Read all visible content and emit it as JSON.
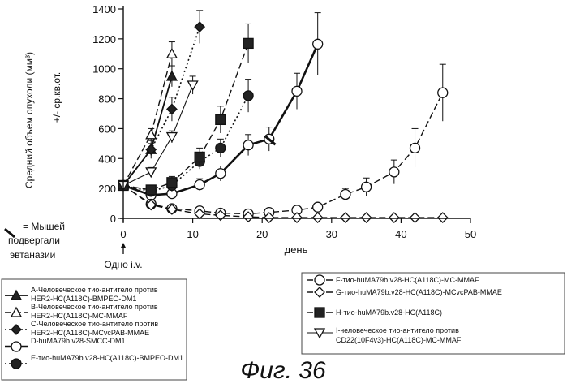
{
  "chart_data": {
    "type": "line",
    "ylabel_main": "Средний объем опухоли (мм³)",
    "ylabel_sub": "+/- ср.кв.от.",
    "xlabel": "день",
    "xlim": [
      0,
      50
    ],
    "ylim": [
      0,
      1400
    ],
    "xticks": [
      0,
      10,
      20,
      30,
      40,
      50
    ],
    "yticks": [
      0,
      200,
      400,
      600,
      800,
      1000,
      1200,
      1400
    ],
    "dosing_label": "Одно i.v.",
    "euthanasia_note": [
      "= Мышей",
      "подвергали",
      "эвтаназии"
    ],
    "euthanasia_marker": {
      "x": 21.2,
      "y": 520
    },
    "figure_label": "Фиг. 36",
    "series": [
      {
        "id": "A",
        "name": "A-Человеческое тио-антитело против HER2-HC(A118C)-BMPEO-DM1",
        "style": "solid",
        "marker": "triangle-filled",
        "points": [
          [
            0,
            220
          ],
          [
            4,
            460
          ],
          [
            7,
            950
          ]
        ],
        "err": [
          20,
          40,
          70
        ]
      },
      {
        "id": "B",
        "name": "B-Человеческое тио-антитело против HER2-HC(A118C)-MC-MMAF",
        "style": "dash",
        "marker": "triangle-open",
        "points": [
          [
            0,
            220
          ],
          [
            4,
            560
          ],
          [
            7,
            1100
          ]
        ],
        "err": [
          20,
          40,
          80
        ]
      },
      {
        "id": "C",
        "name": "C-Человеческое тио-антитело против HER2-HC(A118C)-MCvcPAB-MMAE",
        "style": "dot",
        "marker": "diamond-filled",
        "points": [
          [
            0,
            220
          ],
          [
            4,
            460
          ],
          [
            7,
            730
          ],
          [
            11,
            1280
          ]
        ],
        "err": [
          20,
          60,
          80,
          110
        ]
      },
      {
        "id": "D",
        "name": "D-huMA79b.v28-SMCC-DM1",
        "style": "thick",
        "marker": "circle-open",
        "points": [
          [
            0,
            220
          ],
          [
            4,
            155
          ],
          [
            7,
            165
          ],
          [
            11,
            225
          ],
          [
            14,
            300
          ],
          [
            18,
            490
          ],
          [
            21,
            530
          ],
          [
            25,
            850
          ],
          [
            28,
            1165
          ]
        ],
        "err": [
          20,
          30,
          35,
          40,
          50,
          70,
          80,
          120,
          210
        ]
      },
      {
        "id": "E",
        "name": "E-тио-huMA79b.v28-HC(A118C)-BMPEO-DM1",
        "style": "dot",
        "marker": "circle-filled",
        "points": [
          [
            0,
            220
          ],
          [
            4,
            180
          ],
          [
            7,
            220
          ],
          [
            11,
            380
          ],
          [
            14,
            470
          ],
          [
            18,
            820
          ]
        ],
        "err": [
          20,
          30,
          40,
          50,
          60,
          110
        ]
      },
      {
        "id": "F",
        "name": "F-тио-huMA79b.v28-HC(A118C)-MC-MMAF",
        "style": "dash",
        "marker": "circle-open",
        "points": [
          [
            0,
            220
          ],
          [
            4,
            95
          ],
          [
            7,
            65
          ],
          [
            11,
            50
          ],
          [
            14,
            35
          ],
          [
            18,
            30
          ],
          [
            21,
            40
          ],
          [
            25,
            55
          ],
          [
            28,
            75
          ],
          [
            32,
            160
          ],
          [
            35,
            210
          ],
          [
            39,
            310
          ],
          [
            42,
            470
          ],
          [
            46,
            840
          ]
        ],
        "err": [
          20,
          15,
          10,
          10,
          8,
          8,
          10,
          12,
          20,
          40,
          60,
          80,
          130,
          190
        ]
      },
      {
        "id": "G",
        "name": "G-тио-huMA79b.v28-HC(A118C)-MCvcPAB-MMAE",
        "style": "dash",
        "marker": "diamond-open",
        "points": [
          [
            0,
            220
          ],
          [
            4,
            90
          ],
          [
            7,
            60
          ],
          [
            11,
            30
          ],
          [
            14,
            20
          ],
          [
            18,
            10
          ],
          [
            21,
            5
          ],
          [
            25,
            5
          ],
          [
            28,
            5
          ],
          [
            32,
            5
          ],
          [
            35,
            5
          ],
          [
            39,
            5
          ],
          [
            42,
            5
          ],
          [
            46,
            5
          ]
        ],
        "err": [
          20,
          10,
          8,
          5,
          4,
          3,
          2,
          2,
          2,
          2,
          2,
          2,
          2,
          2
        ]
      },
      {
        "id": "H",
        "name": "H-тио-huMA79b.v28-HC(A118C)",
        "style": "dash",
        "marker": "square-filled",
        "points": [
          [
            0,
            220
          ],
          [
            4,
            190
          ],
          [
            7,
            240
          ],
          [
            11,
            410
          ],
          [
            14,
            660
          ],
          [
            18,
            1170
          ]
        ],
        "err": [
          20,
          30,
          40,
          60,
          90,
          130
        ]
      },
      {
        "id": "I",
        "name": "I-человеческое тио-антитело против CD22(10F4v3)-HC(A118C)-MC-MMAF",
        "style": "thin",
        "marker": "triangle-down-open",
        "points": [
          [
            0,
            220
          ],
          [
            4,
            310
          ],
          [
            7,
            545
          ],
          [
            10,
            890
          ]
        ],
        "err": [
          20,
          30,
          40,
          60
        ]
      }
    ]
  },
  "legend_left": [
    "A",
    "B",
    "C",
    "D",
    "E"
  ],
  "legend_right": [
    "F",
    "G",
    "H",
    "I"
  ]
}
